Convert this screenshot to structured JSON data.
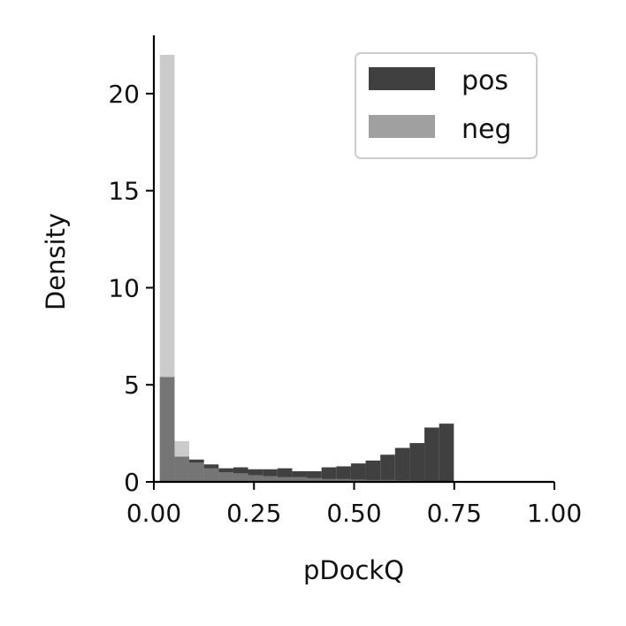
{
  "chart_data": {
    "type": "bar",
    "xlabel": "pDockQ",
    "ylabel": "Density",
    "xlim": [
      0,
      1
    ],
    "ylim": [
      0,
      23
    ],
    "xticks": [
      0,
      0.25,
      0.5,
      0.75,
      1
    ],
    "xtick_labels": [
      "0.00",
      "0.25",
      "0.50",
      "0.75",
      "1.00"
    ],
    "yticks": [
      0,
      5,
      10,
      15,
      20
    ],
    "ytick_labels": [
      "0",
      "5",
      "10",
      "15",
      "20"
    ],
    "grid": false,
    "legend_position": "top-right",
    "bin_width": 0.0367,
    "series": [
      {
        "name": "pos",
        "color": "#404040",
        "alpha": 1.0,
        "bin_starts": [
          0.015,
          0.0517,
          0.0884,
          0.1251,
          0.1618,
          0.1985,
          0.2352,
          0.2719,
          0.3086,
          0.3453,
          0.382,
          0.4187,
          0.4554,
          0.4921,
          0.5288,
          0.5655,
          0.6022,
          0.6389,
          0.6756,
          0.7123
        ],
        "values": [
          5.4,
          1.3,
          1.15,
          0.9,
          0.7,
          0.75,
          0.65,
          0.65,
          0.7,
          0.55,
          0.55,
          0.75,
          0.8,
          0.95,
          1.1,
          1.4,
          1.75,
          2.0,
          2.8,
          3.0
        ]
      },
      {
        "name": "neg",
        "color": "#a0a0a0",
        "alpha": 1.0,
        "bin_starts": [
          0.015,
          0.0517,
          0.0884,
          0.1251,
          0.1618,
          0.1985,
          0.2352,
          0.2719,
          0.3086,
          0.3453,
          0.382,
          0.4187,
          0.4554,
          0.4921,
          0.5288,
          0.5655,
          0.6022,
          0.6389,
          0.6756,
          0.7123
        ],
        "values": [
          22.0,
          2.1,
          1.0,
          0.7,
          0.5,
          0.45,
          0.35,
          0.3,
          0.25,
          0.25,
          0.2,
          0.15,
          0.15,
          0.12,
          0.1,
          0.1,
          0.08,
          0.06,
          0.05,
          0.04
        ]
      }
    ]
  }
}
